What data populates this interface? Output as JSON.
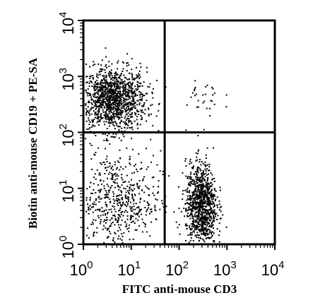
{
  "chart_data": {
    "type": "scatter",
    "xlabel": "FITC anti-mouse CD3",
    "ylabel": "Biotin anti-mouse CD19 + PE-SA",
    "x_scale": "log",
    "y_scale": "log",
    "xlim": [
      1,
      10000
    ],
    "ylim": [
      1,
      10000
    ],
    "x_ticks": [
      {
        "mantissa": "10",
        "exp": "0"
      },
      {
        "mantissa": "10",
        "exp": "1"
      },
      {
        "mantissa": "10",
        "exp": "2"
      },
      {
        "mantissa": "10",
        "exp": "3"
      },
      {
        "mantissa": "10",
        "exp": "4"
      }
    ],
    "y_ticks": [
      {
        "mantissa": "10",
        "exp": "0"
      },
      {
        "mantissa": "10",
        "exp": "1"
      },
      {
        "mantissa": "10",
        "exp": "2"
      },
      {
        "mantissa": "10",
        "exp": "3"
      },
      {
        "mantissa": "10",
        "exp": "4"
      }
    ],
    "quadrant_gates": {
      "x": 50,
      "y": 100
    },
    "point_color": "#000000",
    "populations": [
      {
        "center": [
          4,
          400
        ],
        "spread": [
          0.35,
          0.28
        ],
        "count": 1300
      },
      {
        "center": [
          5,
          6
        ],
        "spread": [
          0.45,
          0.45
        ],
        "count": 600
      },
      {
        "center": [
          280,
          5
        ],
        "spread": [
          0.16,
          0.38
        ],
        "count": 1000
      },
      {
        "center": [
          300,
          400
        ],
        "spread": [
          0.22,
          0.2
        ],
        "count": 30
      }
    ],
    "grid": false,
    "legend": "none"
  }
}
